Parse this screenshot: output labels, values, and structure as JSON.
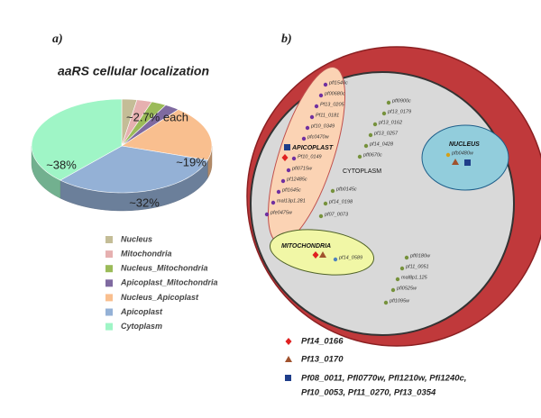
{
  "chart_data": {
    "type": "pie",
    "panel_label": "a)",
    "title": "aaRS cellular localization",
    "categories": [
      "Nucleus",
      "Mitochondria",
      "Nucleus_Mitochondria",
      "Apicoplast_Mitochondria",
      "Nucleus_Apicoplast",
      "Apicoplast",
      "Cytoplasm"
    ],
    "values": [
      2.7,
      2.7,
      2.7,
      2.7,
      19,
      32,
      38
    ],
    "value_labels": [
      null,
      null,
      null,
      null,
      "~19%",
      "~32%",
      "~38%"
    ],
    "annotation": "~2.7% each",
    "colors": [
      "#c4bd97",
      "#e6b0b0",
      "#9bbb59",
      "#7f6aa0",
      "#f9bf8f",
      "#94b1d6",
      "#9ff5c6"
    ]
  },
  "diagram": {
    "panel_label": "b)",
    "apicoplast": {
      "label": "APICOPLAST",
      "genes": [
        "pfl1540c",
        "pf00680c",
        "Pf13_0205",
        "Pf11_0181",
        "pf10_0349",
        "pfc0470w",
        "Pf10_0149",
        "pfi0715w",
        "pf12485c",
        "pfl1645c",
        "mal13p1.281",
        "pfe0475w"
      ]
    },
    "cytoplasm": {
      "label": "CYTOPLASM",
      "genes": [
        "pfl0900c",
        "pf13_0179",
        "pf13_0162",
        "pf13_0257",
        "pf14_0428",
        "pfl0670c",
        "pfb0145c",
        "pf14_0198",
        "pf07_0073",
        "pfl0180w",
        "pf11_0051",
        "mal8p1.125",
        "pfi0525w",
        "pfl1095w"
      ]
    },
    "nucleus": {
      "label": "NUCLEUS",
      "genes": [
        "pfb0480w"
      ]
    },
    "mitochondria": {
      "label": "MITOCHONDRIA",
      "genes": [
        "pf14_0589"
      ]
    },
    "legend": {
      "diamond": "Pf14_0166",
      "triangle": "Pf13_0170",
      "square": [
        "Pf08_0011, Pfl0770w, Pfl1210w, Pfi1240c,",
        "Pf10_0053, Pf11_0270, Pf13_0354"
      ]
    }
  }
}
